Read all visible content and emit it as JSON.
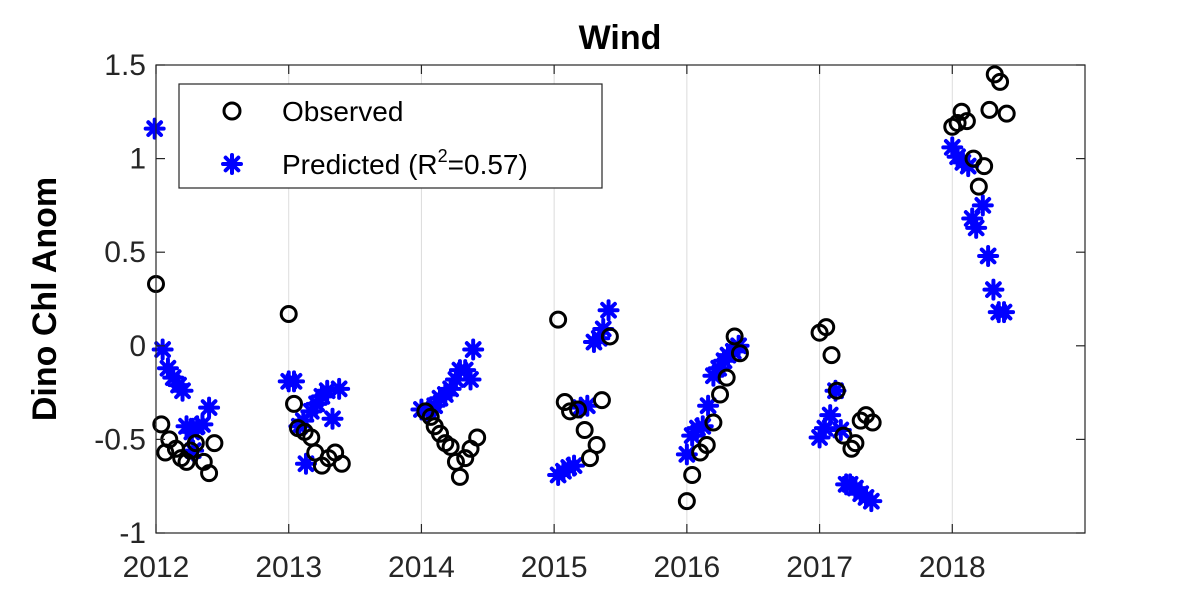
{
  "chart_data": {
    "type": "scatter",
    "title": "Wind",
    "xlabel": "",
    "ylabel": "Dino Chl Anom",
    "xlim": [
      2012,
      2019
    ],
    "ylim": [
      -1,
      1.5
    ],
    "xticks": [
      2012,
      2013,
      2014,
      2015,
      2016,
      2017,
      2018
    ],
    "xtick_labels": [
      "2012",
      "2013",
      "2014",
      "2015",
      "2016",
      "2017",
      "2018"
    ],
    "yticks": [
      -1,
      -0.5,
      0,
      0.5,
      1,
      1.5
    ],
    "ytick_labels": [
      "-1",
      "-0.5",
      "0",
      "0.5",
      "1",
      "1.5"
    ],
    "grid": "vertical lines at x ticks",
    "legend": {
      "position": "top-left",
      "entries": [
        {
          "label": "Observed",
          "marker": "circle",
          "color": "#000000"
        },
        {
          "label_main": "Predicted (R",
          "label_sup": "2",
          "label_end": "=0.57)",
          "marker": "star",
          "color": "#0000ff"
        }
      ]
    },
    "series": [
      {
        "name": "Observed",
        "marker": "circle",
        "color": "#000000",
        "points": [
          [
            2012.0,
            0.33
          ],
          [
            2012.04,
            -0.42
          ],
          [
            2012.07,
            -0.57
          ],
          [
            2012.1,
            -0.5
          ],
          [
            2012.15,
            -0.55
          ],
          [
            2012.19,
            -0.6
          ],
          [
            2012.23,
            -0.62
          ],
          [
            2012.26,
            -0.56
          ],
          [
            2012.3,
            -0.52
          ],
          [
            2012.36,
            -0.62
          ],
          [
            2012.4,
            -0.68
          ],
          [
            2012.44,
            -0.52
          ],
          [
            2013.0,
            0.17
          ],
          [
            2013.04,
            -0.31
          ],
          [
            2013.07,
            -0.44
          ],
          [
            2013.12,
            -0.46
          ],
          [
            2013.17,
            -0.49
          ],
          [
            2013.2,
            -0.57
          ],
          [
            2013.25,
            -0.64
          ],
          [
            2013.3,
            -0.6
          ],
          [
            2013.35,
            -0.57
          ],
          [
            2013.4,
            -0.63
          ],
          [
            2014.03,
            -0.35
          ],
          [
            2014.07,
            -0.38
          ],
          [
            2014.1,
            -0.43
          ],
          [
            2014.14,
            -0.47
          ],
          [
            2014.18,
            -0.52
          ],
          [
            2014.22,
            -0.54
          ],
          [
            2014.26,
            -0.62
          ],
          [
            2014.29,
            -0.7
          ],
          [
            2014.33,
            -0.6
          ],
          [
            2014.37,
            -0.55
          ],
          [
            2014.42,
            -0.49
          ],
          [
            2015.03,
            0.14
          ],
          [
            2015.08,
            -0.3
          ],
          [
            2015.12,
            -0.35
          ],
          [
            2015.18,
            -0.34
          ],
          [
            2015.23,
            -0.45
          ],
          [
            2015.27,
            -0.6
          ],
          [
            2015.32,
            -0.53
          ],
          [
            2015.36,
            -0.29
          ],
          [
            2015.42,
            0.05
          ],
          [
            2016.0,
            -0.83
          ],
          [
            2016.04,
            -0.69
          ],
          [
            2016.1,
            -0.57
          ],
          [
            2016.15,
            -0.53
          ],
          [
            2016.2,
            -0.41
          ],
          [
            2016.25,
            -0.26
          ],
          [
            2016.3,
            -0.17
          ],
          [
            2016.36,
            0.05
          ],
          [
            2016.4,
            -0.04
          ],
          [
            2017.0,
            0.07
          ],
          [
            2017.05,
            0.1
          ],
          [
            2017.09,
            -0.05
          ],
          [
            2017.13,
            -0.24
          ],
          [
            2017.18,
            -0.48
          ],
          [
            2017.24,
            -0.55
          ],
          [
            2017.27,
            -0.52
          ],
          [
            2017.31,
            -0.4
          ],
          [
            2017.35,
            -0.37
          ],
          [
            2017.4,
            -0.41
          ],
          [
            2018.0,
            1.17
          ],
          [
            2018.04,
            1.19
          ],
          [
            2018.07,
            1.25
          ],
          [
            2018.11,
            1.2
          ],
          [
            2018.16,
            1.0
          ],
          [
            2018.2,
            0.85
          ],
          [
            2018.24,
            0.96
          ],
          [
            2018.28,
            1.26
          ],
          [
            2018.32,
            1.45
          ],
          [
            2018.36,
            1.41
          ],
          [
            2018.41,
            1.24
          ]
        ]
      },
      {
        "name": "Predicted (R^2=0.57)",
        "marker": "star",
        "color": "#0000ff",
        "points": [
          [
            2011.99,
            1.16
          ],
          [
            2012.05,
            -0.02
          ],
          [
            2012.09,
            -0.12
          ],
          [
            2012.13,
            -0.17
          ],
          [
            2012.17,
            -0.21
          ],
          [
            2012.2,
            -0.24
          ],
          [
            2012.23,
            -0.43
          ],
          [
            2012.27,
            -0.46
          ],
          [
            2012.31,
            -0.43
          ],
          [
            2012.35,
            -0.42
          ],
          [
            2012.4,
            -0.33
          ],
          [
            2012.28,
            -0.56
          ],
          [
            2013.0,
            -0.19
          ],
          [
            2013.04,
            -0.19
          ],
          [
            2013.08,
            -0.43
          ],
          [
            2013.11,
            -0.4
          ],
          [
            2013.13,
            -0.63
          ],
          [
            2013.17,
            -0.35
          ],
          [
            2013.21,
            -0.31
          ],
          [
            2013.25,
            -0.27
          ],
          [
            2013.29,
            -0.24
          ],
          [
            2013.33,
            -0.39
          ],
          [
            2013.38,
            -0.23
          ],
          [
            2014.0,
            -0.34
          ],
          [
            2014.05,
            -0.35
          ],
          [
            2014.1,
            -0.32
          ],
          [
            2014.14,
            -0.28
          ],
          [
            2014.18,
            -0.26
          ],
          [
            2014.22,
            -0.23
          ],
          [
            2014.26,
            -0.18
          ],
          [
            2014.29,
            -0.13
          ],
          [
            2014.33,
            -0.13
          ],
          [
            2014.37,
            -0.18
          ],
          [
            2014.39,
            -0.02
          ],
          [
            2015.03,
            -0.69
          ],
          [
            2015.07,
            -0.67
          ],
          [
            2015.11,
            -0.65
          ],
          [
            2015.15,
            -0.64
          ],
          [
            2015.2,
            -0.33
          ],
          [
            2015.25,
            -0.32
          ],
          [
            2015.3,
            0.02
          ],
          [
            2015.34,
            0.04
          ],
          [
            2015.37,
            0.09
          ],
          [
            2015.41,
            0.19
          ],
          [
            2016.0,
            -0.58
          ],
          [
            2016.04,
            -0.48
          ],
          [
            2016.08,
            -0.44
          ],
          [
            2016.12,
            -0.43
          ],
          [
            2016.16,
            -0.32
          ],
          [
            2016.2,
            -0.16
          ],
          [
            2016.24,
            -0.12
          ],
          [
            2016.28,
            -0.08
          ],
          [
            2016.31,
            -0.05
          ],
          [
            2016.35,
            -0.03
          ],
          [
            2016.39,
            0.0
          ],
          [
            2017.0,
            -0.49
          ],
          [
            2017.04,
            -0.44
          ],
          [
            2017.08,
            -0.37
          ],
          [
            2017.12,
            -0.24
          ],
          [
            2017.16,
            -0.45
          ],
          [
            2017.2,
            -0.74
          ],
          [
            2017.23,
            -0.74
          ],
          [
            2017.27,
            -0.76
          ],
          [
            2017.31,
            -0.79
          ],
          [
            2017.35,
            -0.81
          ],
          [
            2017.39,
            -0.83
          ],
          [
            2018.0,
            1.06
          ],
          [
            2018.04,
            1.01
          ],
          [
            2018.08,
            0.98
          ],
          [
            2018.12,
            0.96
          ],
          [
            2018.15,
            0.68
          ],
          [
            2018.18,
            0.63
          ],
          [
            2018.23,
            0.75
          ],
          [
            2018.27,
            0.48
          ],
          [
            2018.31,
            0.3
          ],
          [
            2018.35,
            0.18
          ],
          [
            2018.39,
            0.18
          ]
        ]
      }
    ]
  }
}
